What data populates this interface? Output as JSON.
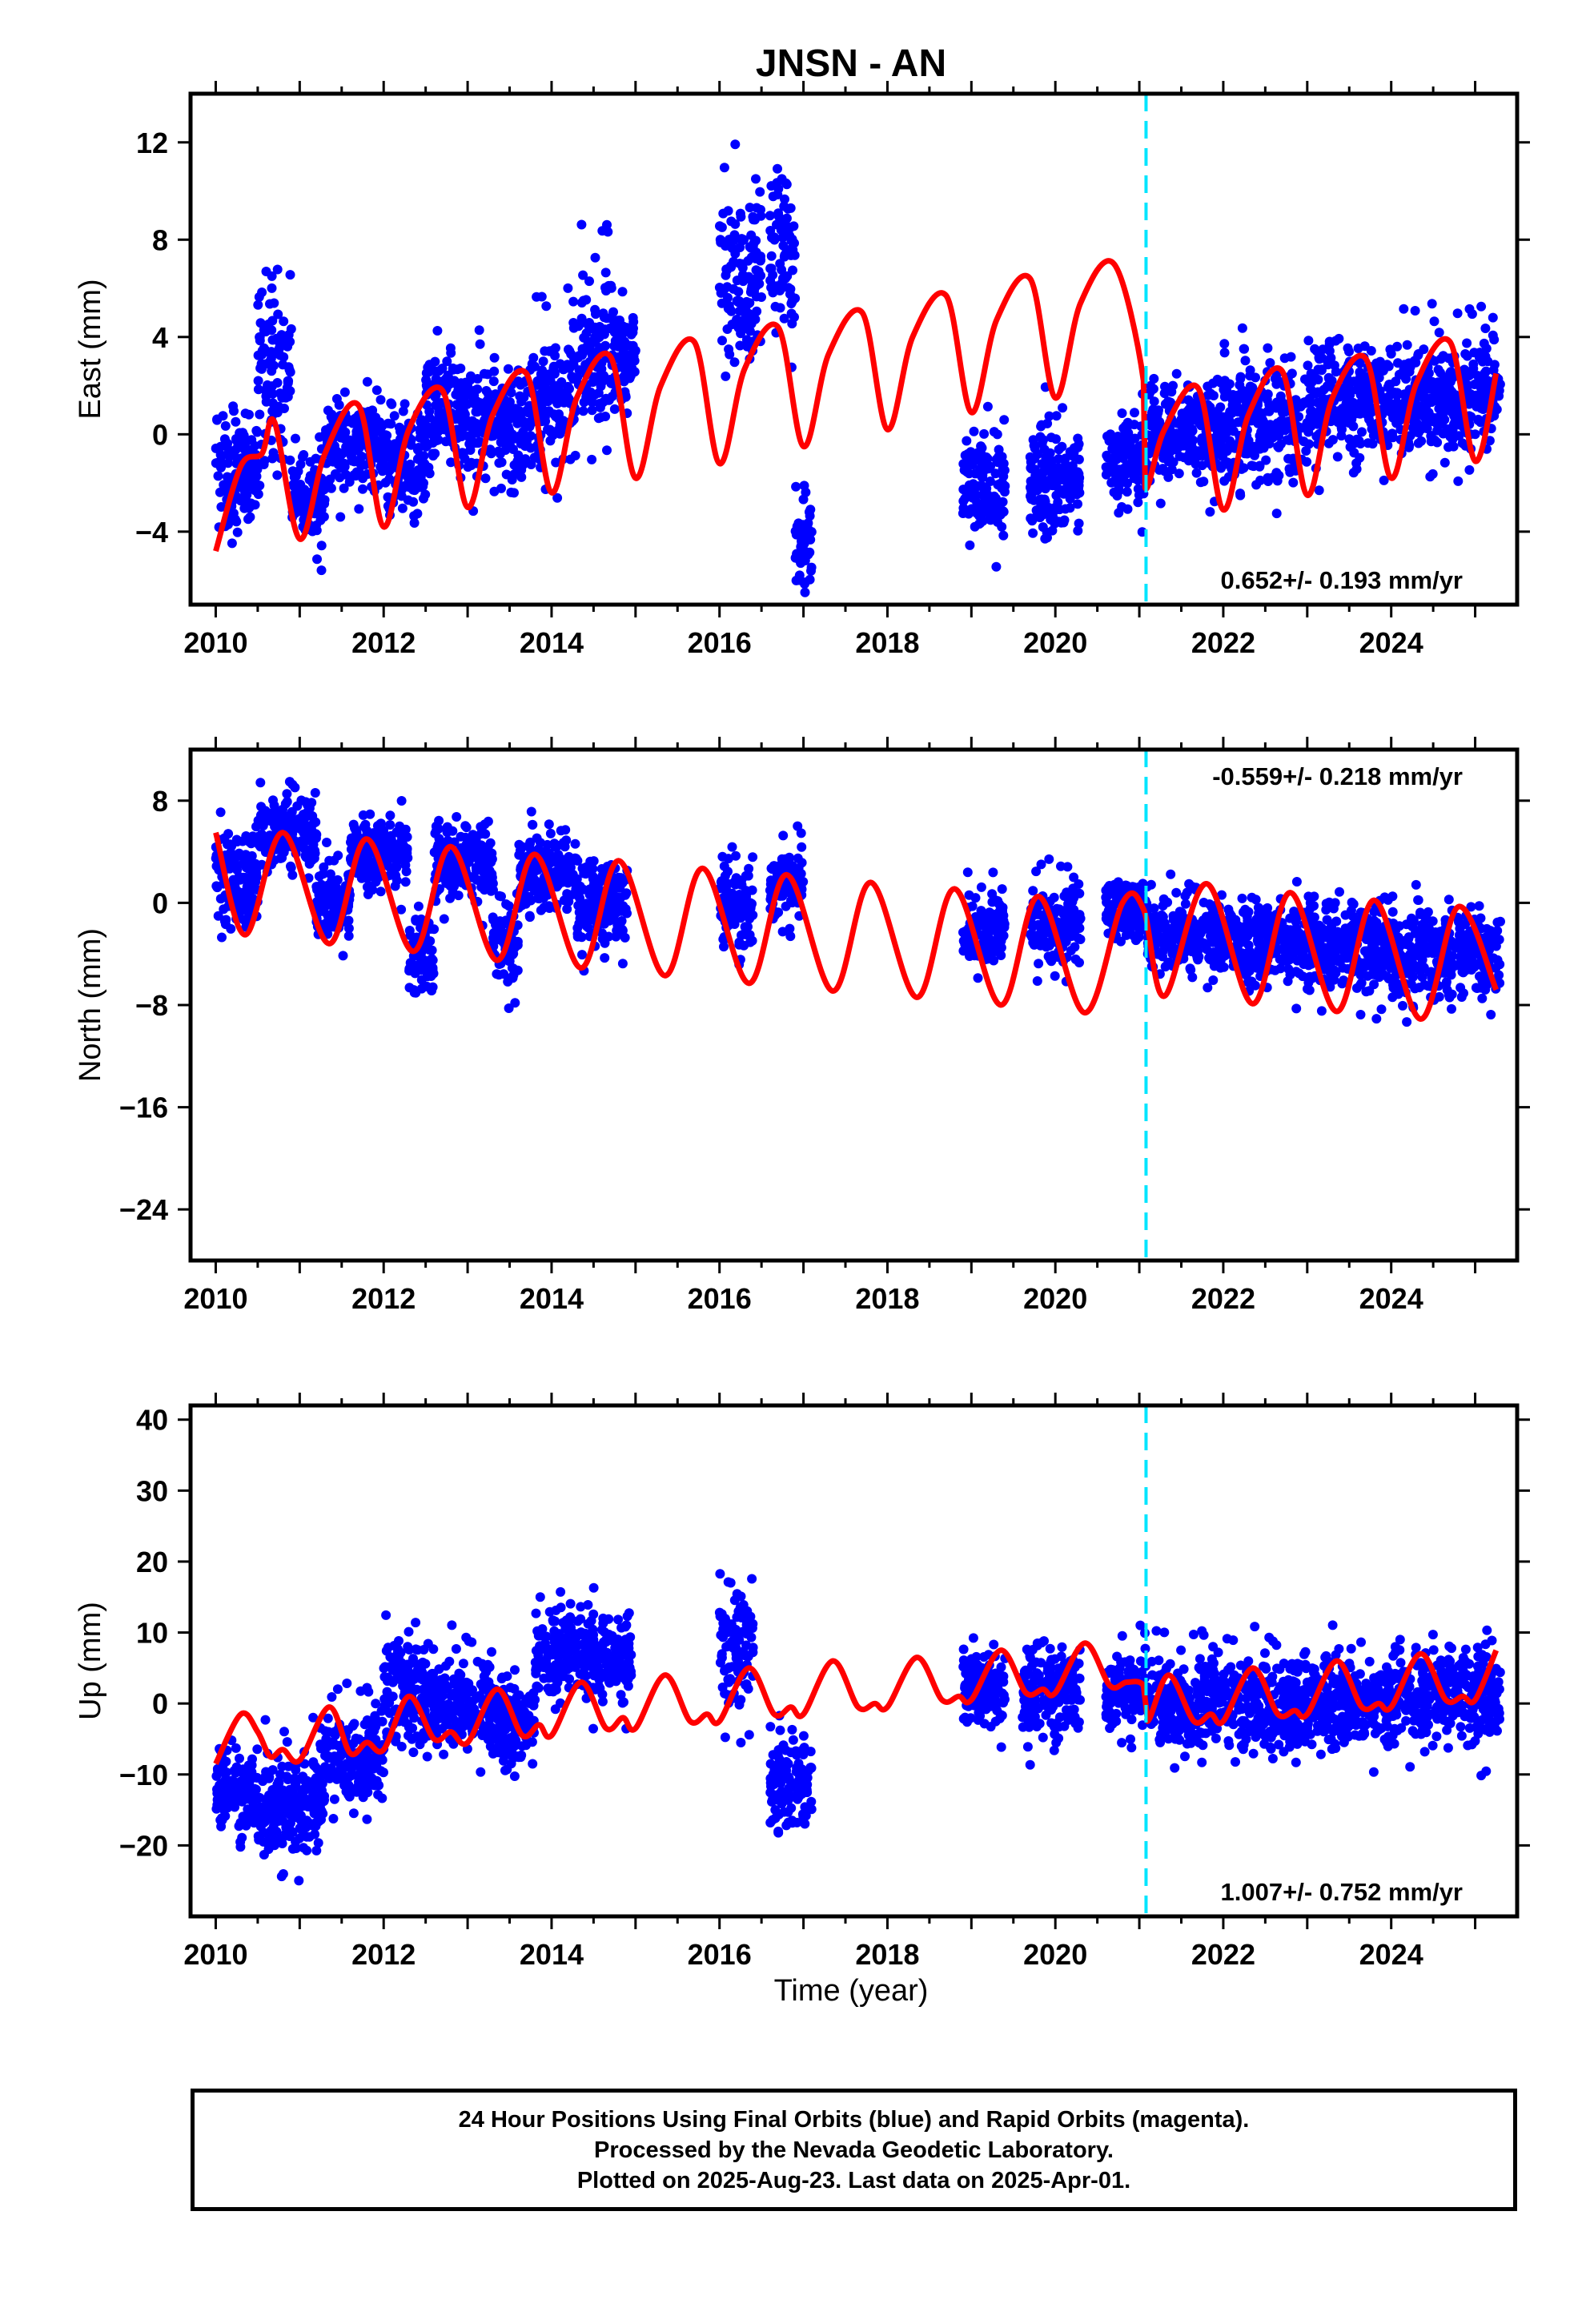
{
  "title": "JNSN - AN",
  "xlabel": "Time (year)",
  "caption": {
    "line1": "24 Hour Positions Using Final Orbits (blue) and Rapid Orbits (magenta).",
    "line2": "Processed by the Nevada Geodetic Laboratory.",
    "line3": "Plotted on 2025-Aug-23. Last data on 2025-Apr-01."
  },
  "colors": {
    "data": "#0000ff",
    "model": "#ff0000",
    "break": "#00e5ff",
    "axis": "#000000"
  },
  "chart_data": [
    {
      "type": "scatter",
      "component": "east",
      "ylabel": "East (mm)",
      "rate_label": "0.652+/- 0.193 mm/yr",
      "rate_position": "bottom-right",
      "xlim": [
        2009.7,
        2025.5
      ],
      "ylim": [
        -7,
        14
      ],
      "xticks": [
        2010,
        2012,
        2014,
        2016,
        2018,
        2020,
        2022,
        2024
      ],
      "yticks": [
        -4,
        0,
        4,
        8,
        12
      ],
      "equipment_change_year": 2021.08,
      "data_clusters": [
        {
          "start": 2010.0,
          "end": 2010.5,
          "center": -1.5,
          "spread": 2.5
        },
        {
          "start": 2010.5,
          "end": 2010.9,
          "center": 2.5,
          "spread": 4.5
        },
        {
          "start": 2010.9,
          "end": 2011.3,
          "center": -2.5,
          "spread": 2.0
        },
        {
          "start": 2011.3,
          "end": 2012.0,
          "center": -0.5,
          "spread": 2.0
        },
        {
          "start": 2012.0,
          "end": 2012.5,
          "center": -1.0,
          "spread": 2.5
        },
        {
          "start": 2012.5,
          "end": 2013.0,
          "center": 1.0,
          "spread": 2.5
        },
        {
          "start": 2013.0,
          "end": 2013.7,
          "center": 0.5,
          "spread": 2.5
        },
        {
          "start": 2013.7,
          "end": 2014.3,
          "center": 1.5,
          "spread": 3.0
        },
        {
          "start": 2014.3,
          "end": 2014.8,
          "center": 3.5,
          "spread": 3.5
        },
        {
          "start": 2014.8,
          "end": 2015.0,
          "center": 3.0,
          "spread": 2.0
        },
        {
          "start": 2016.0,
          "end": 2016.5,
          "center": 6.5,
          "spread": 3.5
        },
        {
          "start": 2016.6,
          "end": 2016.9,
          "center": 7.5,
          "spread": 4.0
        },
        {
          "start": 2016.9,
          "end": 2017.1,
          "center": -4.5,
          "spread": 1.8
        },
        {
          "start": 2018.9,
          "end": 2019.4,
          "center": -2.0,
          "spread": 2.5
        },
        {
          "start": 2019.7,
          "end": 2020.3,
          "center": -2.0,
          "spread": 2.5
        },
        {
          "start": 2020.6,
          "end": 2021.1,
          "center": -1.0,
          "spread": 2.0
        },
        {
          "start": 2021.1,
          "end": 2022.0,
          "center": 0.0,
          "spread": 2.0
        },
        {
          "start": 2022.0,
          "end": 2023.0,
          "center": 0.5,
          "spread": 2.5
        },
        {
          "start": 2023.0,
          "end": 2024.0,
          "center": 1.5,
          "spread": 2.5
        },
        {
          "start": 2024.0,
          "end": 2025.3,
          "center": 1.5,
          "spread": 2.5
        }
      ],
      "model_knots": [
        {
          "x": 2010.0,
          "y": -4.8
        },
        {
          "x": 2010.3,
          "y": -1.3
        },
        {
          "x": 2010.55,
          "y": -0.8
        },
        {
          "x": 2010.7,
          "y": 0.5
        },
        {
          "x": 2011.0,
          "y": -4.3
        },
        {
          "x": 2011.3,
          "y": -0.8
        },
        {
          "x": 2011.7,
          "y": 1.2
        },
        {
          "x": 2012.0,
          "y": -3.8
        },
        {
          "x": 2012.3,
          "y": 0.2
        },
        {
          "x": 2012.7,
          "y": 1.8
        },
        {
          "x": 2013.0,
          "y": -3.0
        },
        {
          "x": 2013.3,
          "y": 0.8
        },
        {
          "x": 2013.7,
          "y": 2.5
        },
        {
          "x": 2014.0,
          "y": -2.4
        },
        {
          "x": 2014.3,
          "y": 1.5
        },
        {
          "x": 2014.7,
          "y": 3.2
        },
        {
          "x": 2015.0,
          "y": -1.8
        },
        {
          "x": 2015.3,
          "y": 2.0
        },
        {
          "x": 2015.7,
          "y": 3.8
        },
        {
          "x": 2016.0,
          "y": -1.2
        },
        {
          "x": 2016.3,
          "y": 2.7
        },
        {
          "x": 2016.7,
          "y": 4.4
        },
        {
          "x": 2017.0,
          "y": -0.5
        },
        {
          "x": 2017.3,
          "y": 3.3
        },
        {
          "x": 2017.7,
          "y": 5.0
        },
        {
          "x": 2018.0,
          "y": 0.2
        },
        {
          "x": 2018.3,
          "y": 4.0
        },
        {
          "x": 2018.7,
          "y": 5.7
        },
        {
          "x": 2019.0,
          "y": 0.9
        },
        {
          "x": 2019.3,
          "y": 4.7
        },
        {
          "x": 2019.7,
          "y": 6.4
        },
        {
          "x": 2020.0,
          "y": 1.5
        },
        {
          "x": 2020.3,
          "y": 5.4
        },
        {
          "x": 2020.7,
          "y": 7.0
        },
        {
          "x": 2021.05,
          "y": 2.2
        },
        {
          "x": 2021.07,
          "y": -2.2
        },
        {
          "x": 2021.3,
          "y": 0.2
        },
        {
          "x": 2021.7,
          "y": 1.9
        },
        {
          "x": 2022.0,
          "y": -3.1
        },
        {
          "x": 2022.3,
          "y": 0.8
        },
        {
          "x": 2022.7,
          "y": 2.6
        },
        {
          "x": 2023.0,
          "y": -2.5
        },
        {
          "x": 2023.3,
          "y": 1.5
        },
        {
          "x": 2023.7,
          "y": 3.1
        },
        {
          "x": 2024.0,
          "y": -1.8
        },
        {
          "x": 2024.3,
          "y": 2.1
        },
        {
          "x": 2024.7,
          "y": 3.8
        },
        {
          "x": 2025.0,
          "y": -1.1
        },
        {
          "x": 2025.25,
          "y": 2.5
        }
      ]
    },
    {
      "type": "scatter",
      "component": "north",
      "ylabel": "North (mm)",
      "rate_label": "-0.559+/- 0.218 mm/yr",
      "rate_position": "top-right",
      "xlim": [
        2009.7,
        2025.5
      ],
      "ylim": [
        -28,
        12
      ],
      "xticks": [
        2010,
        2012,
        2014,
        2016,
        2018,
        2020,
        2022,
        2024
      ],
      "yticks": [
        -24,
        -16,
        -8,
        0,
        8
      ],
      "equipment_change_year": 2021.08,
      "data_clusters": [
        {
          "start": 2010.0,
          "end": 2010.5,
          "center": 2.0,
          "spread": 4.0
        },
        {
          "start": 2010.5,
          "end": 2011.2,
          "center": 5.5,
          "spread": 3.0
        },
        {
          "start": 2011.2,
          "end": 2011.6,
          "center": 0.0,
          "spread": 3.0
        },
        {
          "start": 2011.6,
          "end": 2012.3,
          "center": 4.0,
          "spread": 3.0
        },
        {
          "start": 2012.3,
          "end": 2012.6,
          "center": -4.0,
          "spread": 4.0
        },
        {
          "start": 2012.6,
          "end": 2013.3,
          "center": 3.0,
          "spread": 3.0
        },
        {
          "start": 2013.3,
          "end": 2013.6,
          "center": -3.0,
          "spread": 3.5
        },
        {
          "start": 2013.6,
          "end": 2014.3,
          "center": 2.5,
          "spread": 3.0
        },
        {
          "start": 2014.3,
          "end": 2014.9,
          "center": 0.0,
          "spread": 3.5
        },
        {
          "start": 2016.0,
          "end": 2016.4,
          "center": 0.0,
          "spread": 4.5
        },
        {
          "start": 2016.6,
          "end": 2017.0,
          "center": 1.5,
          "spread": 3.0
        },
        {
          "start": 2018.9,
          "end": 2019.4,
          "center": -2.0,
          "spread": 3.0
        },
        {
          "start": 2019.7,
          "end": 2020.3,
          "center": -2.0,
          "spread": 3.5
        },
        {
          "start": 2020.6,
          "end": 2021.1,
          "center": -0.5,
          "spread": 2.5
        },
        {
          "start": 2021.1,
          "end": 2022.0,
          "center": -2.5,
          "spread": 3.0
        },
        {
          "start": 2022.0,
          "end": 2023.0,
          "center": -3.0,
          "spread": 3.5
        },
        {
          "start": 2023.0,
          "end": 2024.0,
          "center": -3.5,
          "spread": 3.5
        },
        {
          "start": 2024.0,
          "end": 2025.3,
          "center": -4.0,
          "spread": 3.5
        }
      ],
      "model_knots": [
        {
          "x": 2010.0,
          "y": 5.5
        },
        {
          "x": 2010.35,
          "y": -2.5
        },
        {
          "x": 2010.8,
          "y": 5.5
        },
        {
          "x": 2011.35,
          "y": -3.2
        },
        {
          "x": 2011.8,
          "y": 5.0
        },
        {
          "x": 2012.35,
          "y": -3.8
        },
        {
          "x": 2012.8,
          "y": 4.4
        },
        {
          "x": 2013.35,
          "y": -4.5
        },
        {
          "x": 2013.8,
          "y": 3.8
        },
        {
          "x": 2014.35,
          "y": -5.1
        },
        {
          "x": 2014.8,
          "y": 3.3
        },
        {
          "x": 2015.35,
          "y": -5.7
        },
        {
          "x": 2015.8,
          "y": 2.7
        },
        {
          "x": 2016.35,
          "y": -6.3
        },
        {
          "x": 2016.8,
          "y": 2.2
        },
        {
          "x": 2017.35,
          "y": -6.9
        },
        {
          "x": 2017.8,
          "y": 1.6
        },
        {
          "x": 2018.35,
          "y": -7.4
        },
        {
          "x": 2018.8,
          "y": 1.1
        },
        {
          "x": 2019.35,
          "y": -8.0
        },
        {
          "x": 2019.8,
          "y": 0.5
        },
        {
          "x": 2020.35,
          "y": -8.6
        },
        {
          "x": 2020.8,
          "y": 0.0
        },
        {
          "x": 2021.05,
          "y": -0.5
        },
        {
          "x": 2021.3,
          "y": -7.3
        },
        {
          "x": 2021.8,
          "y": 1.5
        },
        {
          "x": 2022.35,
          "y": -7.9
        },
        {
          "x": 2022.8,
          "y": 0.8
        },
        {
          "x": 2023.35,
          "y": -8.5
        },
        {
          "x": 2023.8,
          "y": 0.2
        },
        {
          "x": 2024.35,
          "y": -9.1
        },
        {
          "x": 2024.8,
          "y": -0.3
        },
        {
          "x": 2025.25,
          "y": -6.8
        }
      ]
    },
    {
      "type": "scatter",
      "component": "up",
      "ylabel": "Up (mm)",
      "rate_label": "1.007+/- 0.752 mm/yr",
      "rate_position": "bottom-right",
      "xlim": [
        2009.7,
        2025.5
      ],
      "ylim": [
        -30,
        42
      ],
      "xticks": [
        2010,
        2012,
        2014,
        2016,
        2018,
        2020,
        2022,
        2024
      ],
      "yticks": [
        -20,
        -10,
        0,
        10,
        20,
        30,
        40
      ],
      "equipment_change_year": 2021.08,
      "data_clusters": [
        {
          "start": 2010.0,
          "end": 2010.5,
          "center": -12.0,
          "spread": 7.0
        },
        {
          "start": 2010.5,
          "end": 2011.3,
          "center": -14.0,
          "spread": 8.0
        },
        {
          "start": 2011.3,
          "end": 2012.0,
          "center": -8.0,
          "spread": 7.0
        },
        {
          "start": 2012.0,
          "end": 2012.6,
          "center": 2.0,
          "spread": 8.0
        },
        {
          "start": 2012.6,
          "end": 2013.3,
          "center": 0.0,
          "spread": 7.0
        },
        {
          "start": 2013.3,
          "end": 2013.8,
          "center": -3.0,
          "spread": 7.0
        },
        {
          "start": 2013.8,
          "end": 2014.6,
          "center": 7.0,
          "spread": 7.0
        },
        {
          "start": 2014.6,
          "end": 2014.95,
          "center": 6.0,
          "spread": 6.0
        },
        {
          "start": 2016.0,
          "end": 2016.4,
          "center": 8.0,
          "spread": 9.0
        },
        {
          "start": 2016.6,
          "end": 2017.1,
          "center": -11.0,
          "spread": 6.0
        },
        {
          "start": 2018.9,
          "end": 2019.4,
          "center": 2.0,
          "spread": 6.0
        },
        {
          "start": 2019.6,
          "end": 2020.3,
          "center": 2.0,
          "spread": 7.0
        },
        {
          "start": 2020.6,
          "end": 2021.1,
          "center": 2.0,
          "spread": 6.0
        },
        {
          "start": 2021.1,
          "end": 2022.0,
          "center": 0.0,
          "spread": 7.0
        },
        {
          "start": 2022.0,
          "end": 2023.0,
          "center": 0.0,
          "spread": 7.0
        },
        {
          "start": 2023.0,
          "end": 2024.0,
          "center": 0.0,
          "spread": 7.0
        },
        {
          "start": 2024.0,
          "end": 2025.3,
          "center": 1.0,
          "spread": 7.0
        }
      ],
      "model_knots": [
        {
          "x": 2010.0,
          "y": -8.5
        },
        {
          "x": 2010.3,
          "y": -1.5
        },
        {
          "x": 2010.5,
          "y": -4.0
        },
        {
          "x": 2010.65,
          "y": -7.5
        },
        {
          "x": 2010.8,
          "y": -6.5
        },
        {
          "x": 2011.0,
          "y": -8.0
        },
        {
          "x": 2011.35,
          "y": -0.5
        },
        {
          "x": 2011.6,
          "y": -7.0
        },
        {
          "x": 2011.8,
          "y": -5.5
        },
        {
          "x": 2012.0,
          "y": -6.5
        },
        {
          "x": 2012.3,
          "y": 1.0
        },
        {
          "x": 2012.6,
          "y": -5.0
        },
        {
          "x": 2012.8,
          "y": -4.0
        },
        {
          "x": 2013.0,
          "y": -5.5
        },
        {
          "x": 2013.35,
          "y": 2.0
        },
        {
          "x": 2013.65,
          "y": -4.5
        },
        {
          "x": 2013.85,
          "y": -3.0
        },
        {
          "x": 2014.0,
          "y": -4.5
        },
        {
          "x": 2014.35,
          "y": 3.0
        },
        {
          "x": 2014.65,
          "y": -3.5
        },
        {
          "x": 2014.85,
          "y": -2.0
        },
        {
          "x": 2015.0,
          "y": -3.5
        },
        {
          "x": 2015.35,
          "y": 4.0
        },
        {
          "x": 2015.65,
          "y": -2.5
        },
        {
          "x": 2015.85,
          "y": -1.5
        },
        {
          "x": 2016.0,
          "y": -2.5
        },
        {
          "x": 2016.35,
          "y": 5.0
        },
        {
          "x": 2016.65,
          "y": -1.5
        },
        {
          "x": 2016.85,
          "y": -0.5
        },
        {
          "x": 2017.0,
          "y": -1.5
        },
        {
          "x": 2017.35,
          "y": 6.0
        },
        {
          "x": 2017.65,
          "y": -0.5
        },
        {
          "x": 2017.85,
          "y": 0.0
        },
        {
          "x": 2018.0,
          "y": -0.5
        },
        {
          "x": 2018.35,
          "y": 6.5
        },
        {
          "x": 2018.65,
          "y": 0.5
        },
        {
          "x": 2018.85,
          "y": 1.0
        },
        {
          "x": 2019.0,
          "y": 0.5
        },
        {
          "x": 2019.35,
          "y": 7.5
        },
        {
          "x": 2019.65,
          "y": 1.5
        },
        {
          "x": 2019.85,
          "y": 2.0
        },
        {
          "x": 2020.0,
          "y": 1.5
        },
        {
          "x": 2020.35,
          "y": 8.5
        },
        {
          "x": 2020.65,
          "y": 2.5
        },
        {
          "x": 2020.85,
          "y": 3.0
        },
        {
          "x": 2021.05,
          "y": 2.5
        },
        {
          "x": 2021.1,
          "y": -2.5
        },
        {
          "x": 2021.35,
          "y": 4.0
        },
        {
          "x": 2021.65,
          "y": -2.5
        },
        {
          "x": 2021.85,
          "y": -1.5
        },
        {
          "x": 2022.0,
          "y": -2.5
        },
        {
          "x": 2022.35,
          "y": 5.0
        },
        {
          "x": 2022.65,
          "y": -1.5
        },
        {
          "x": 2022.85,
          "y": -1.0
        },
        {
          "x": 2023.0,
          "y": -1.5
        },
        {
          "x": 2023.35,
          "y": 6.0
        },
        {
          "x": 2023.65,
          "y": -0.5
        },
        {
          "x": 2023.85,
          "y": 0.0
        },
        {
          "x": 2024.0,
          "y": -0.5
        },
        {
          "x": 2024.35,
          "y": 7.0
        },
        {
          "x": 2024.65,
          "y": 0.5
        },
        {
          "x": 2024.85,
          "y": 1.0
        },
        {
          "x": 2025.0,
          "y": 0.5
        },
        {
          "x": 2025.25,
          "y": 7.5
        }
      ]
    }
  ]
}
